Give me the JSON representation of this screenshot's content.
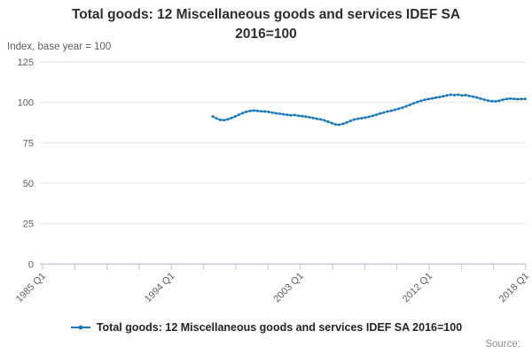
{
  "chart_data": {
    "type": "line",
    "title": "Total goods: 12 Miscellaneous goods and services IDEF SA 2016=100",
    "y_axis": {
      "label": "Index, base year = 100",
      "ticks": [
        0,
        25,
        50,
        75,
        100,
        125
      ],
      "range": [
        0,
        125
      ]
    },
    "x_axis": {
      "tick_count": 16,
      "labeled_ticks": [
        {
          "tick": 0,
          "label": "1985 Q1"
        },
        {
          "tick": 4,
          "label": "1994 Q1"
        },
        {
          "tick": 8,
          "label": "2003 Q1"
        },
        {
          "tick": 12,
          "label": "2012 Q1"
        },
        {
          "tick": 15,
          "label": "2018 Q1"
        }
      ]
    },
    "grid": true,
    "legend_position": "bottom",
    "series": [
      {
        "name": "Total goods: 12 Miscellaneous goods and services IDEF SA 2016=100",
        "color": "#1878be",
        "frequency": "quarterly",
        "x_start": "1997 Q1",
        "x_end": "2018 Q1",
        "values": [
          91.3,
          90.1,
          89.2,
          89.0,
          89.5,
          90.3,
          91.3,
          92.4,
          93.4,
          94.2,
          94.7,
          95.0,
          94.8,
          94.5,
          94.4,
          94.1,
          93.7,
          93.3,
          93.0,
          92.7,
          92.3,
          92.0,
          92.2,
          91.8,
          91.5,
          91.2,
          90.8,
          90.3,
          89.9,
          89.5,
          88.9,
          88.1,
          87.2,
          86.4,
          86.2,
          86.7,
          87.6,
          88.6,
          89.4,
          89.9,
          90.2,
          90.6,
          91.1,
          91.7,
          92.4,
          93.1,
          93.8,
          94.4,
          94.9,
          95.5,
          96.1,
          96.8,
          97.6,
          98.5,
          99.4,
          100.3,
          101.0,
          101.6,
          102.1,
          102.5,
          102.9,
          103.3,
          103.8,
          104.3,
          104.8,
          104.5,
          104.8,
          104.3,
          104.5,
          104.0,
          103.6,
          103.1,
          102.4,
          101.7,
          101.1,
          100.8,
          100.7,
          101.0,
          101.6,
          102.1,
          102.4,
          102.2,
          102.0,
          102.1,
          102.2
        ]
      }
    ],
    "colors": {
      "line": "#1878be",
      "gridline": "#e3e3e3",
      "axis": "#c5cbe0",
      "tick_label": "#5f5f5f"
    }
  },
  "source_label": "Source:"
}
